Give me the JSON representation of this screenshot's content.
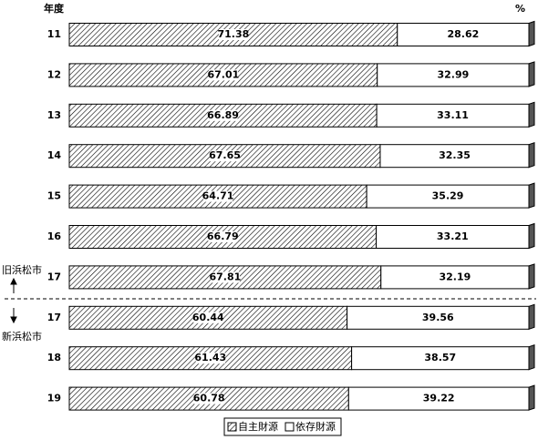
{
  "chart_data": {
    "type": "stacked-bar-100",
    "x_label": "年度",
    "unit_label": "%",
    "annotations": [
      "旧浜松市",
      "新浜松市"
    ],
    "categories": [
      "11",
      "12",
      "13",
      "14",
      "15",
      "16",
      "17",
      "17",
      "18",
      "19"
    ],
    "series": [
      {
        "name": "自主財源",
        "color": "#000000",
        "hatch": true,
        "values": [
          71.38,
          67.01,
          66.89,
          67.65,
          64.71,
          66.79,
          67.81,
          60.44,
          61.43,
          60.78
        ]
      },
      {
        "name": "依存財源",
        "color": "#ffffff",
        "hatch": false,
        "values": [
          28.62,
          32.99,
          33.11,
          32.35,
          35.29,
          33.21,
          32.19,
          39.56,
          38.57,
          39.22
        ]
      }
    ]
  }
}
